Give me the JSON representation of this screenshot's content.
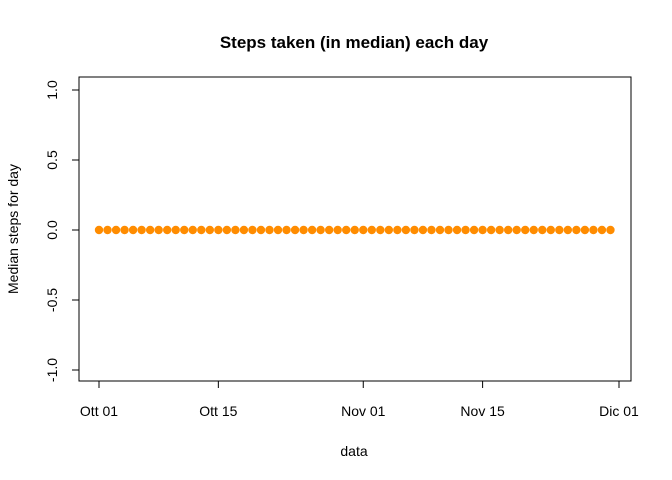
{
  "chart_data": {
    "type": "scatter",
    "title": "Steps taken (in median) each day",
    "xlabel": "data",
    "ylabel": "Median steps for day",
    "x_ticks": [
      "Ott 01",
      "Ott 15",
      "Nov 01",
      "Nov 15",
      "Dic 01"
    ],
    "y_ticks": [
      "-1.0",
      "-0.5",
      "0.0",
      "0.5",
      "1.0"
    ],
    "ylim": [
      -1.0,
      1.0
    ],
    "grid": false,
    "marker_color": "#FF8C00",
    "x": [
      "2012-10-01",
      "2012-10-02",
      "2012-10-03",
      "2012-10-04",
      "2012-10-05",
      "2012-10-06",
      "2012-10-07",
      "2012-10-08",
      "2012-10-09",
      "2012-10-10",
      "2012-10-11",
      "2012-10-12",
      "2012-10-13",
      "2012-10-14",
      "2012-10-15",
      "2012-10-16",
      "2012-10-17",
      "2012-10-18",
      "2012-10-19",
      "2012-10-20",
      "2012-10-21",
      "2012-10-22",
      "2012-10-23",
      "2012-10-24",
      "2012-10-25",
      "2012-10-26",
      "2012-10-27",
      "2012-10-28",
      "2012-10-29",
      "2012-10-30",
      "2012-10-31",
      "2012-11-01",
      "2012-11-02",
      "2012-11-03",
      "2012-11-04",
      "2012-11-05",
      "2012-11-06",
      "2012-11-07",
      "2012-11-08",
      "2012-11-09",
      "2012-11-10",
      "2012-11-11",
      "2012-11-12",
      "2012-11-13",
      "2012-11-14",
      "2012-11-15",
      "2012-11-16",
      "2012-11-17",
      "2012-11-18",
      "2012-11-19",
      "2012-11-20",
      "2012-11-21",
      "2012-11-22",
      "2012-11-23",
      "2012-11-24",
      "2012-11-25",
      "2012-11-26",
      "2012-11-27",
      "2012-11-28",
      "2012-11-29",
      "2012-11-30"
    ],
    "y": [
      0,
      0,
      0,
      0,
      0,
      0,
      0,
      0,
      0,
      0,
      0,
      0,
      0,
      0,
      0,
      0,
      0,
      0,
      0,
      0,
      0,
      0,
      0,
      0,
      0,
      0,
      0,
      0,
      0,
      0,
      0,
      0,
      0,
      0,
      0,
      0,
      0,
      0,
      0,
      0,
      0,
      0,
      0,
      0,
      0,
      0,
      0,
      0,
      0,
      0,
      0,
      0,
      0,
      0,
      0,
      0,
      0,
      0,
      0,
      0,
      0
    ]
  }
}
